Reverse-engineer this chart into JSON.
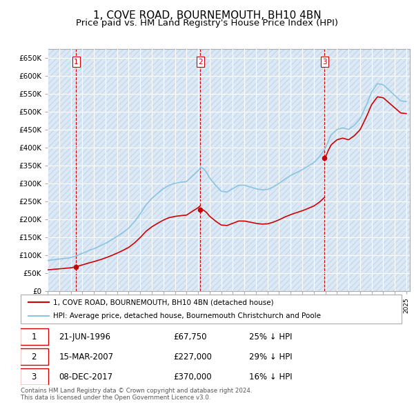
{
  "title": "1, COVE ROAD, BOURNEMOUTH, BH10 4BN",
  "subtitle": "Price paid vs. HM Land Registry's House Price Index (HPI)",
  "title_fontsize": 11,
  "subtitle_fontsize": 9.5,
  "hpi_color": "#89c4e1",
  "price_color": "#cc0000",
  "bg_color": "#dce9f5",
  "grid_color": "#ffffff",
  "hatch_color": "#c5d8ed",
  "ylim": [
    0,
    675000
  ],
  "yticks": [
    0,
    50000,
    100000,
    150000,
    200000,
    250000,
    300000,
    350000,
    400000,
    450000,
    500000,
    550000,
    600000,
    650000
  ],
  "ytick_labels": [
    "£0",
    "£50K",
    "£100K",
    "£150K",
    "£200K",
    "£250K",
    "£300K",
    "£350K",
    "£400K",
    "£450K",
    "£500K",
    "£550K",
    "£600K",
    "£650K"
  ],
  "sale_prices": [
    67750,
    227000,
    370000
  ],
  "sale_labels": [
    "1",
    "2",
    "3"
  ],
  "sale_hpi_pct": [
    "25% ↓ HPI",
    "29% ↓ HPI",
    "16% ↓ HPI"
  ],
  "sale_date_labels": [
    "21-JUN-1996",
    "15-MAR-2007",
    "08-DEC-2017"
  ],
  "sale_price_labels": [
    "£67,750",
    "£227,000",
    "£370,000"
  ],
  "legend_price_label": "1, COVE ROAD, BOURNEMOUTH, BH10 4BN (detached house)",
  "legend_hpi_label": "HPI: Average price, detached house, Bournemouth Christchurch and Poole",
  "footnote": "Contains HM Land Registry data © Crown copyright and database right 2024.\nThis data is licensed under the Open Government Licence v3.0.",
  "sale1_year": 1996,
  "sale1_month": 6,
  "sale1_day": 21,
  "sale2_year": 2007,
  "sale2_month": 3,
  "sale2_day": 15,
  "sale3_year": 2017,
  "sale3_month": 12,
  "sale3_day": 8
}
